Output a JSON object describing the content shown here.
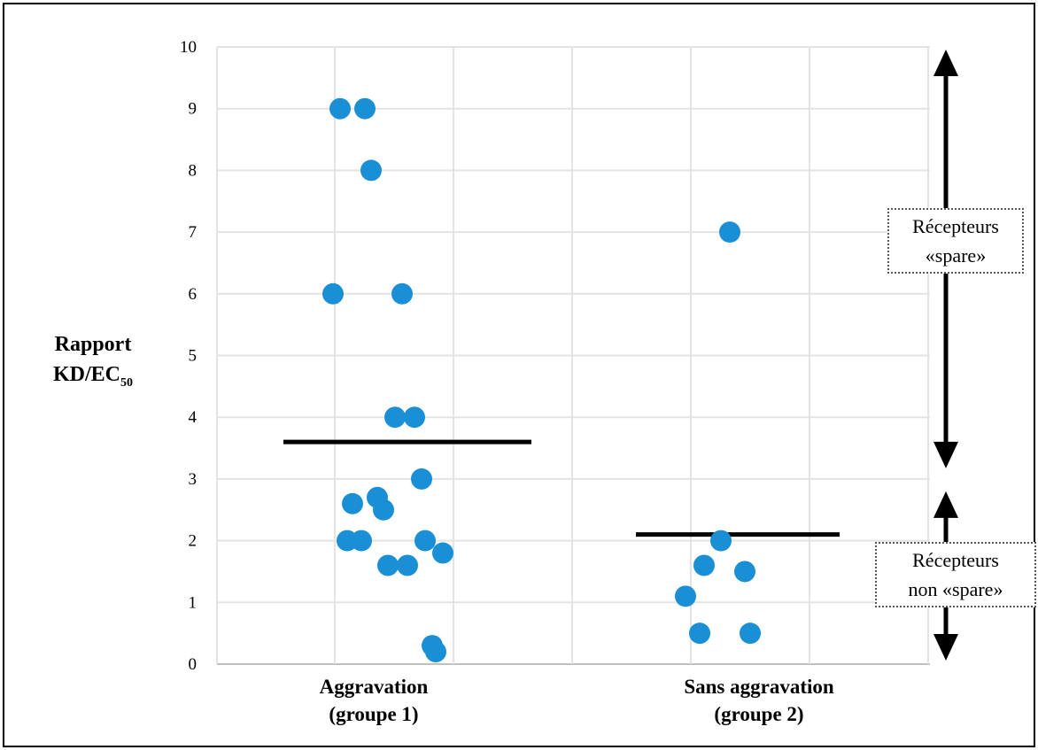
{
  "chart_data": {
    "type": "scatter",
    "ylabel": {
      "main": "Rapport",
      "line2": "KD/EC",
      "line2_sub": "50"
    },
    "ylim": [
      0,
      10
    ],
    "y_ticks": [
      "0",
      "1",
      "2",
      "3",
      "4",
      "5",
      "6",
      "7",
      "8",
      "9",
      "10"
    ],
    "grid": true,
    "categories": [
      {
        "line1": "Aggravation",
        "line2": "(groupe 1)"
      },
      {
        "line1": "Sans aggravation",
        "line2": "(groupe 2)"
      }
    ],
    "series": [
      {
        "category": 0,
        "values": [
          9,
          9,
          8,
          6,
          6,
          4,
          4,
          3,
          2.7,
          2.6,
          2.5,
          2,
          2,
          2,
          1.8,
          1.6,
          1.6,
          0.3,
          0.2
        ],
        "mean": 3.6
      },
      {
        "category": 1,
        "values": [
          7,
          2,
          1.6,
          1.5,
          1.1,
          0.5,
          0.5
        ],
        "mean": 2.1
      }
    ],
    "point_color": "#1a8fd6",
    "annotations": [
      {
        "line1": "Récepteurs",
        "line2": "«spare»",
        "range": [
          3,
          10
        ]
      },
      {
        "line1": "Récepteurs",
        "line2": "non «spare»",
        "range": [
          0,
          3
        ]
      }
    ]
  }
}
